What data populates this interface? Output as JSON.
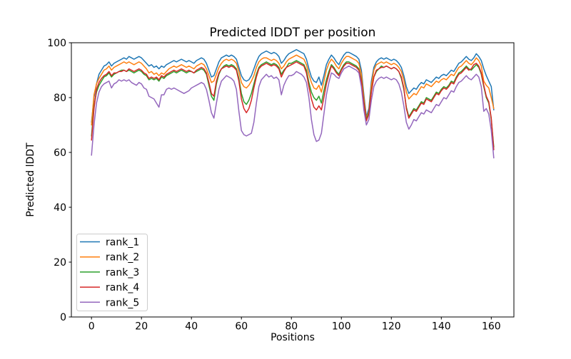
{
  "chart_data": {
    "type": "line",
    "title": "Predicted lDDT per position",
    "xlabel": "Positions",
    "ylabel": "Predicted lDDT",
    "xlim": [
      -8.05,
      169.05
    ],
    "ylim": [
      0,
      100
    ],
    "x_ticks": [
      0,
      20,
      40,
      60,
      80,
      100,
      120,
      140,
      160
    ],
    "y_ticks": [
      0,
      20,
      40,
      60,
      80,
      100
    ],
    "grid": false,
    "num_points": 162,
    "x_is_index": true,
    "legend": {
      "position": "lower left",
      "border_color": "#cccccc",
      "background": "#ffffff"
    },
    "series": [
      {
        "name": "rank_1",
        "color": "#1f77b4",
        "values": [
          71,
          80,
          85,
          88.5,
          90,
          91.5,
          92,
          93,
          91.5,
          92.5,
          93,
          93.5,
          94,
          94.5,
          94,
          95,
          94.5,
          94,
          94.5,
          95,
          94.5,
          93.5,
          92.5,
          91.5,
          92,
          91,
          91.5,
          90.5,
          91.5,
          91,
          92,
          92.5,
          93,
          93.5,
          93,
          93.5,
          94,
          93.5,
          93,
          93.5,
          93,
          92.5,
          93.5,
          94,
          94.5,
          94,
          92.5,
          90,
          87.5,
          88,
          90.5,
          93,
          94.5,
          95,
          95.5,
          95,
          95.5,
          95,
          94,
          91,
          88,
          86.5,
          86,
          86.5,
          88,
          90.5,
          93,
          95,
          96,
          96.5,
          97,
          96.5,
          96,
          96.5,
          96,
          95,
          92.5,
          93.5,
          95,
          96,
          96.5,
          97,
          97.5,
          97,
          96.5,
          96,
          94,
          90.5,
          87.5,
          86,
          85.5,
          87.5,
          84.5,
          88,
          92,
          94,
          95.5,
          94.5,
          93,
          92,
          94,
          95.5,
          96.5,
          96.5,
          96,
          95.5,
          95,
          94,
          90,
          81,
          73,
          76,
          86,
          91,
          93,
          94,
          94.5,
          94,
          94.5,
          94,
          93.5,
          94,
          93.5,
          92.5,
          91,
          88,
          84,
          81.5,
          82.5,
          83.5,
          83,
          84.5,
          85.5,
          85,
          86.5,
          86,
          85.5,
          86.5,
          87.5,
          87,
          88,
          88.5,
          88,
          89,
          90,
          89.5,
          91,
          92.5,
          93,
          94,
          95,
          94,
          93.5,
          94.5,
          96,
          95,
          93.5,
          90.5,
          88,
          86,
          84,
          75.5
        ]
      },
      {
        "name": "rank_2",
        "color": "#ff7f0e",
        "values": [
          70,
          81,
          85,
          87,
          88.5,
          90,
          90.5,
          91.5,
          90,
          91,
          91.5,
          92,
          92.5,
          93,
          92.5,
          93,
          92.5,
          92,
          92.5,
          93,
          92.5,
          91.5,
          90.5,
          89,
          89.5,
          88.5,
          89,
          88,
          89,
          88.5,
          89.5,
          90.5,
          91,
          91.5,
          91,
          91.5,
          92,
          91.5,
          91,
          91.5,
          91,
          90.5,
          91.5,
          92,
          92.5,
          92,
          90.5,
          88,
          85.5,
          86,
          88.5,
          91,
          92.5,
          93.5,
          94,
          93.5,
          94,
          93.5,
          92.5,
          89.5,
          85.5,
          84,
          83.5,
          84.5,
          86,
          88,
          91,
          93,
          94,
          94.5,
          94.5,
          94,
          93.5,
          94,
          93.5,
          92.5,
          90.5,
          91.5,
          93,
          94,
          94.5,
          95,
          95.5,
          95,
          94.5,
          94,
          92,
          88.5,
          85.5,
          83.5,
          83,
          84.5,
          82,
          86,
          90,
          92.5,
          94,
          93,
          91.5,
          90.5,
          92.5,
          94,
          95,
          95,
          94.5,
          94,
          93.5,
          92.5,
          88.5,
          80,
          72.5,
          75,
          84.5,
          90,
          92,
          92.5,
          93,
          92.5,
          93,
          92.5,
          92,
          92.5,
          92,
          91,
          89.5,
          86.5,
          82,
          79.5,
          80.5,
          81.5,
          81,
          82.5,
          84,
          83.5,
          85,
          84.5,
          84,
          85,
          86,
          85.5,
          86.5,
          87,
          86.5,
          87.5,
          88.5,
          88,
          89.5,
          91,
          91.5,
          92.5,
          93.5,
          92.5,
          92,
          93,
          94.5,
          93.5,
          91.5,
          86,
          84.5,
          83.5,
          80,
          76
        ]
      },
      {
        "name": "rank_3",
        "color": "#2ca02c",
        "values": [
          66,
          77,
          82,
          84.5,
          86,
          87.5,
          88,
          89,
          87.5,
          88.5,
          89,
          89.5,
          90,
          90,
          89.5,
          90,
          89.5,
          89,
          89.5,
          90,
          89.5,
          88.5,
          88,
          86.5,
          87,
          86.5,
          87,
          86,
          87.5,
          87,
          88,
          88.5,
          89,
          89.5,
          89,
          89.5,
          90,
          89.5,
          89,
          89.5,
          89.5,
          89,
          89.5,
          90,
          90.5,
          90,
          88.5,
          84.5,
          80.5,
          79,
          85,
          88.5,
          90.5,
          91.5,
          92,
          91.5,
          92,
          91.5,
          90.5,
          87,
          81.5,
          78.5,
          77.5,
          79,
          81.5,
          85,
          88.5,
          91,
          92,
          92.5,
          93,
          92.5,
          92,
          92.5,
          92,
          91,
          88.5,
          90,
          91,
          92.5,
          92.5,
          93,
          93.5,
          93,
          92.5,
          92,
          90,
          85.5,
          82,
          80,
          79,
          80.5,
          78,
          82.5,
          86.5,
          89.5,
          92,
          91,
          89.5,
          88.5,
          90.5,
          92,
          93,
          93,
          92.5,
          92,
          91.5,
          90.5,
          86.5,
          78.5,
          72,
          74.5,
          82.5,
          87.5,
          89.5,
          90.5,
          91.5,
          91,
          91.5,
          91,
          90.5,
          91,
          90.5,
          89.5,
          87,
          83,
          76.5,
          73,
          74.5,
          76,
          75.5,
          77,
          78.5,
          78,
          80,
          79.5,
          79,
          80.5,
          82,
          81.5,
          83,
          84,
          83.5,
          84.5,
          86,
          85.5,
          87.5,
          89,
          89.5,
          90.5,
          91.5,
          90.5,
          90,
          91,
          92,
          91,
          88.5,
          84,
          80,
          78,
          72,
          62
        ]
      },
      {
        "name": "rank_4",
        "color": "#d62728",
        "values": [
          64.5,
          76,
          83,
          85.5,
          87,
          88,
          88.5,
          89.5,
          88,
          89,
          89,
          89.5,
          89.5,
          90,
          89.5,
          90.5,
          90,
          89.5,
          90,
          90.5,
          90,
          89,
          88.5,
          87,
          87.5,
          87,
          87.5,
          86.5,
          88,
          87.5,
          88.5,
          89,
          89.5,
          90,
          89.5,
          90,
          90.5,
          90,
          89.5,
          90,
          89.5,
          89,
          90,
          90.5,
          91,
          90.5,
          89,
          85.5,
          81.5,
          80.5,
          86,
          89,
          90.5,
          91,
          91.5,
          91,
          91.5,
          91,
          90,
          86,
          79.5,
          76,
          74.5,
          76,
          79,
          83.5,
          87.5,
          90.5,
          91.5,
          92,
          92.5,
          92,
          91.5,
          92,
          91.5,
          90.5,
          87.5,
          89.5,
          91,
          91.5,
          92,
          92.5,
          93,
          92.5,
          92,
          91.5,
          89,
          84,
          79.5,
          76.5,
          75.5,
          77,
          75.5,
          80,
          85,
          88.5,
          91.5,
          90.5,
          89,
          88,
          90,
          91.5,
          92.5,
          92.5,
          92,
          91.5,
          91,
          90,
          86,
          78,
          71.5,
          74,
          82,
          87.5,
          90,
          90.5,
          91,
          91,
          91.5,
          91,
          90.5,
          91,
          90.5,
          89.5,
          87.5,
          83.5,
          76,
          72.5,
          74,
          75.5,
          75,
          76.5,
          78,
          77.5,
          79.5,
          79,
          78.5,
          80,
          81.5,
          81,
          82.5,
          83.5,
          83,
          84,
          85.5,
          85,
          87,
          88.5,
          89,
          90,
          91,
          90,
          90.5,
          92,
          92.5,
          91.5,
          89,
          84.5,
          80.5,
          78.5,
          72.5,
          61
        ]
      },
      {
        "name": "rank_5",
        "color": "#9467bd",
        "values": [
          59,
          70,
          78,
          82,
          84,
          85,
          85.5,
          86,
          83.5,
          85,
          85.5,
          86.5,
          86,
          86.5,
          86,
          86.5,
          85.5,
          85,
          84.5,
          85.5,
          85,
          83.5,
          83,
          80.5,
          80,
          79.5,
          78,
          76.5,
          81,
          81,
          83,
          83.5,
          83,
          83.5,
          83,
          82.5,
          82,
          81.5,
          82,
          82.5,
          83.5,
          84,
          84.5,
          85,
          85.5,
          85,
          83,
          79,
          74.5,
          72.5,
          78,
          83,
          86,
          87,
          88,
          87.5,
          87,
          86,
          83,
          75,
          68,
          66.5,
          66,
          66.5,
          67,
          71,
          78,
          84,
          86.5,
          87.5,
          88.5,
          87.5,
          88,
          87,
          87.5,
          86.5,
          81,
          84.5,
          86.5,
          88,
          88,
          88.5,
          89.5,
          89,
          88.5,
          87.5,
          85.5,
          80,
          72,
          66.5,
          64,
          64.5,
          67,
          74,
          81,
          85.5,
          89,
          88.5,
          87.5,
          87,
          89,
          90.5,
          91,
          91.5,
          91,
          90.5,
          90,
          89,
          84,
          75.5,
          70,
          72,
          79,
          84,
          86,
          87,
          87.5,
          87,
          87.5,
          87,
          86.5,
          87,
          86.5,
          85,
          82,
          77,
          71,
          68.5,
          70,
          72,
          71.5,
          73,
          74.5,
          74,
          75.5,
          75,
          74.5,
          76,
          77.5,
          77,
          78.5,
          80,
          79.5,
          81,
          82.5,
          82,
          84,
          85.5,
          86,
          87,
          88,
          87,
          86.5,
          87.5,
          88.5,
          87.5,
          84,
          75,
          76,
          74,
          68,
          58
        ]
      }
    ]
  }
}
